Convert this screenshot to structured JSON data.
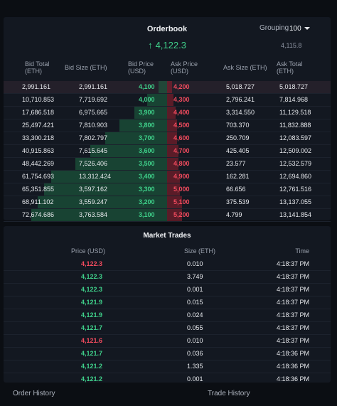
{
  "orderbook": {
    "title": "Orderbook",
    "grouping_label": "Grouping",
    "grouping_value": "100",
    "mid_price": "4,122.3",
    "mark_price": "4,115.8",
    "headers": {
      "bid_total": "Bid Total (ETH)",
      "bid_size": "Bid Size (ETH)",
      "bid_price": "Bid Price (USD)",
      "ask_price": "Ask Price (USD)",
      "ask_size": "Ask Size (ETH)",
      "ask_total": "Ask Total (ETH)"
    },
    "rows": [
      {
        "bid_total": "2,991.161",
        "bid_size": "2,991.161",
        "bid_price": "4,100",
        "ask_price": "4,200",
        "ask_size": "5,018.727",
        "ask_total": "5,018.727",
        "bid_depth": 0.05,
        "ask_depth": 0.03
      },
      {
        "bid_total": "10,710.853",
        "bid_size": "7,719.692",
        "bid_price": "4,000",
        "ask_price": "4,300",
        "ask_size": "2,796.241",
        "ask_total": "7,814.968",
        "bid_depth": 0.12,
        "ask_depth": 0.04
      },
      {
        "bid_total": "17,686.518",
        "bid_size": "6,975.665",
        "bid_price": "3,900",
        "ask_price": "4,400",
        "ask_size": "3,314.550",
        "ask_total": "11,129.518",
        "bid_depth": 0.2,
        "ask_depth": 0.05
      },
      {
        "bid_total": "25,497.421",
        "bid_size": "7,810.903",
        "bid_price": "3,800",
        "ask_price": "4,500",
        "ask_size": "703.370",
        "ask_total": "11,832.888",
        "bid_depth": 0.29,
        "ask_depth": 0.06
      },
      {
        "bid_total": "33,300.218",
        "bid_size": "7,802.797",
        "bid_price": "3,700",
        "ask_price": "4,600",
        "ask_size": "250.709",
        "ask_total": "12,083.597",
        "bid_depth": 0.38,
        "ask_depth": 0.06
      },
      {
        "bid_total": "40,915.863",
        "bid_size": "7,615.645",
        "bid_price": "3,600",
        "ask_price": "4,700",
        "ask_size": "425.405",
        "ask_total": "12,509.002",
        "bid_depth": 0.47,
        "ask_depth": 0.07
      },
      {
        "bid_total": "48,442.269",
        "bid_size": "7,526.406",
        "bid_price": "3,500",
        "ask_price": "4,800",
        "ask_size": "23.577",
        "ask_total": "12,532.579",
        "bid_depth": 0.56,
        "ask_depth": 0.07
      },
      {
        "bid_total": "61,754.693",
        "bid_size": "13,312.424",
        "bid_price": "3,400",
        "ask_price": "4,900",
        "ask_size": "162.281",
        "ask_total": "12,694.860",
        "bid_depth": 0.71,
        "ask_depth": 0.08
      },
      {
        "bid_total": "65,351.855",
        "bid_size": "3,597.162",
        "bid_price": "3,300",
        "ask_price": "5,000",
        "ask_size": "66.656",
        "ask_total": "12,761.516",
        "bid_depth": 0.75,
        "ask_depth": 0.08
      },
      {
        "bid_total": "68,911.102",
        "bid_size": "3,559.247",
        "bid_price": "3,200",
        "ask_price": "5,100",
        "ask_size": "375.539",
        "ask_total": "13,137.055",
        "bid_depth": 0.79,
        "ask_depth": 0.09
      },
      {
        "bid_total": "72,674.686",
        "bid_size": "3,763.584",
        "bid_price": "3,100",
        "ask_price": "5,200",
        "ask_size": "4.799",
        "ask_total": "13,141.854",
        "bid_depth": 0.83,
        "ask_depth": 0.09
      }
    ]
  },
  "market_trades": {
    "title": "Market Trades",
    "headers": {
      "price": "Price (USD)",
      "size": "Size (ETH)",
      "time": "Time"
    },
    "rows": [
      {
        "price": "4,122.3",
        "size": "0.010",
        "time": "4:18:37 PM",
        "side": "sell"
      },
      {
        "price": "4,122.3",
        "size": "3.749",
        "time": "4:18:37 PM",
        "side": "buy"
      },
      {
        "price": "4,122.3",
        "size": "0.001",
        "time": "4:18:37 PM",
        "side": "buy"
      },
      {
        "price": "4,121.9",
        "size": "0.015",
        "time": "4:18:37 PM",
        "side": "buy"
      },
      {
        "price": "4,121.9",
        "size": "0.024",
        "time": "4:18:37 PM",
        "side": "buy"
      },
      {
        "price": "4,121.7",
        "size": "0.055",
        "time": "4:18:37 PM",
        "side": "buy"
      },
      {
        "price": "4,121.6",
        "size": "0.010",
        "time": "4:18:37 PM",
        "side": "sell"
      },
      {
        "price": "4,121.7",
        "size": "0.036",
        "time": "4:18:36 PM",
        "side": "buy"
      },
      {
        "price": "4,121.2",
        "size": "1.335",
        "time": "4:18:36 PM",
        "side": "buy"
      },
      {
        "price": "4,121.2",
        "size": "0.001",
        "time": "4:18:36 PM",
        "side": "buy"
      }
    ]
  },
  "bottom_tabs": {
    "order_history": "Order History",
    "trade_history": "Trade History"
  },
  "colors": {
    "buy": "#3fd08a",
    "sell": "#f24b5e",
    "background": "#0b0e13",
    "panel": "#131821"
  }
}
